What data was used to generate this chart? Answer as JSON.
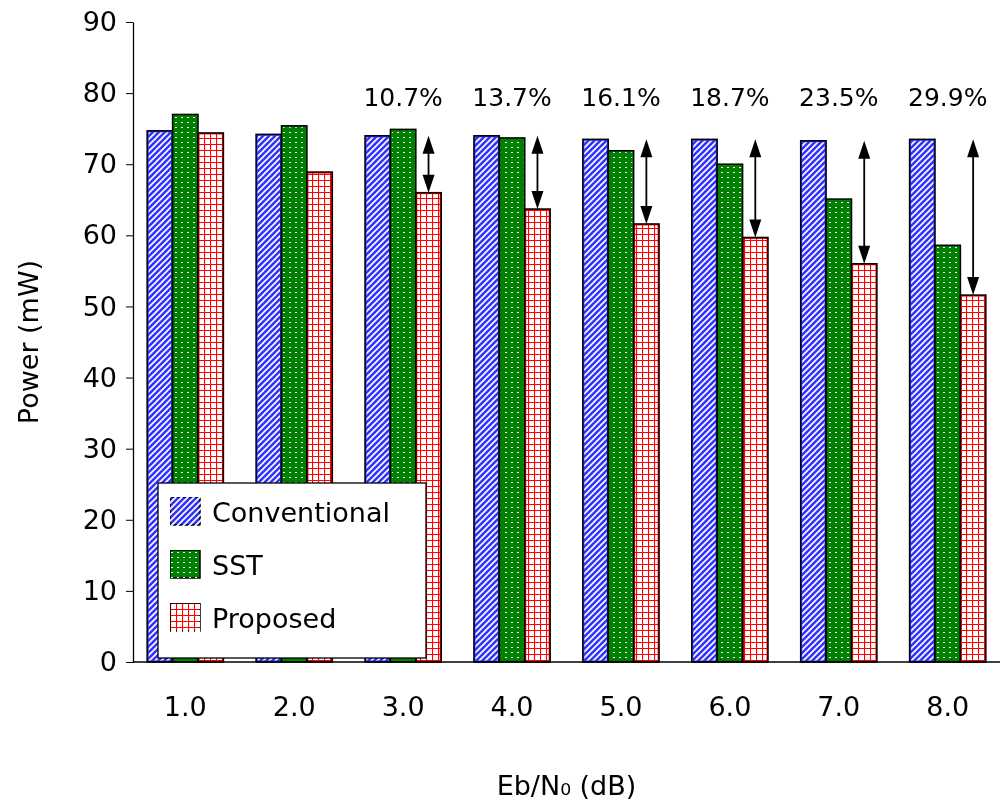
{
  "chart_data": {
    "type": "bar",
    "xlabel": "Eb/N₀ (dB)",
    "ylabel": "Power (mW)",
    "categories": [
      "1.0",
      "2.0",
      "3.0",
      "4.0",
      "5.0",
      "6.0",
      "7.0",
      "8.0"
    ],
    "series": [
      {
        "name": "Conventional",
        "color": "#3333ff",
        "values": [
          74.7,
          74.2,
          74.0,
          74.0,
          73.5,
          73.5,
          73.3,
          73.5
        ]
      },
      {
        "name": "SST",
        "color": "#008000",
        "values": [
          77.0,
          75.4,
          74.9,
          73.7,
          71.9,
          70.0,
          65.1,
          58.6
        ]
      },
      {
        "name": "Proposed",
        "color": "#ff0000",
        "values": [
          74.4,
          68.9,
          66.0,
          63.7,
          61.6,
          59.7,
          56.0,
          51.6
        ]
      }
    ],
    "ylim": [
      0,
      90
    ],
    "yticks": [
      0,
      10,
      20,
      30,
      40,
      50,
      60,
      70,
      80,
      90
    ],
    "grid": false,
    "legend": "bottom left",
    "annotations": [
      "10.7%",
      "13.7%",
      "16.1%",
      "18.7%",
      "23.5%",
      "29.9%"
    ]
  }
}
